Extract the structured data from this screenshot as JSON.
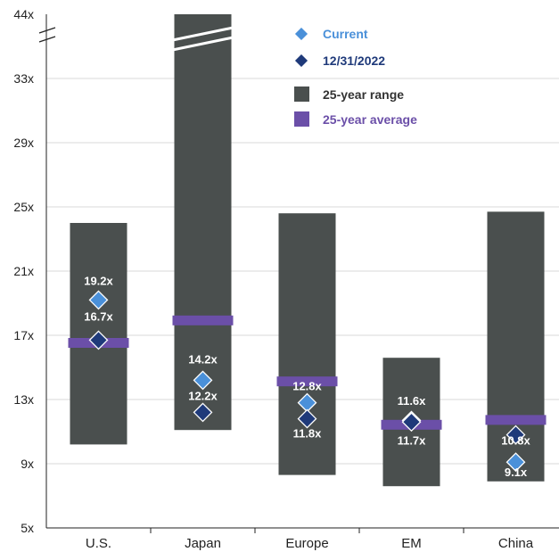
{
  "chart_data": {
    "type": "bar",
    "categories": [
      "U.S.",
      "Japan",
      "Europe",
      "EM",
      "China"
    ],
    "y_ticks": [
      "5x",
      "9x",
      "13x",
      "17x",
      "21x",
      "25x",
      "29x",
      "33x",
      "44x"
    ],
    "ylim": [
      5,
      44
    ],
    "axis_break": true,
    "grid": true,
    "legend_placement": "top-center",
    "series": [
      {
        "name": "25-year range",
        "kind": "range-bar",
        "color": "#4a4f4e",
        "low": [
          10.2,
          11.1,
          8.3,
          7.6,
          7.9
        ],
        "high": [
          24.0,
          44.0,
          24.6,
          15.6,
          24.7
        ]
      },
      {
        "name": "25-year average",
        "kind": "marker-bar",
        "color": "#6b4fa8",
        "values": [
          16.5,
          17.9,
          14.1,
          11.4,
          11.7
        ]
      },
      {
        "name": "Current",
        "kind": "diamond",
        "color": "#4a90d9",
        "values": [
          19.2,
          14.2,
          12.8,
          11.7,
          9.1
        ],
        "labels": [
          "19.2x",
          "14.2x",
          "12.8x",
          "11.7x",
          "9.1x"
        ]
      },
      {
        "name": "12/31/2022",
        "kind": "diamond",
        "color": "#1f3a7a",
        "values": [
          16.7,
          12.2,
          11.8,
          11.6,
          10.8
        ],
        "labels": [
          "16.7x",
          "12.2x",
          "11.8x",
          "11.6x",
          "10.8x"
        ]
      }
    ]
  }
}
